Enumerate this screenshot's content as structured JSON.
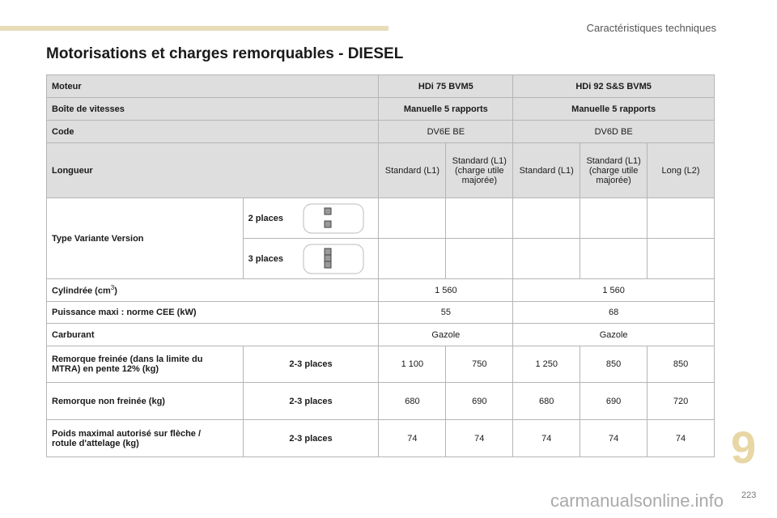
{
  "header": {
    "section": "Caractéristiques techniques",
    "title": "Motorisations et charges remorquables - DIESEL"
  },
  "table": {
    "moteur": {
      "label": "Moteur",
      "c1": "HDi 75 BVM5",
      "c2": "HDi 92 S&S BVM5"
    },
    "boite": {
      "label": "Boîte de vitesses",
      "c1": "Manuelle 5 rapports",
      "c2": "Manuelle 5 rapports"
    },
    "code": {
      "label": "Code",
      "c1": "DV6E BE",
      "c2": "DV6D BE"
    },
    "longueur": {
      "label": "Longueur",
      "cols": [
        "Standard (L1)",
        "Standard (L1) (charge utile majorée)",
        "Standard (L1)",
        "Standard (L1) (charge utile majorée)",
        "Long (L2)"
      ]
    },
    "type": {
      "label": "Type Variante Version",
      "v1": "2 places",
      "v2": "3 places"
    },
    "cylindree": {
      "label": "Cylindrée (cm",
      "sup": "3",
      "label_end": ")",
      "c1": "1 560",
      "c2": "1 560"
    },
    "puissance": {
      "label": "Puissance maxi : norme CEE (kW)",
      "c1": "55",
      "c2": "68"
    },
    "carburant": {
      "label": "Carburant",
      "c1": "Gazole",
      "c2": "Gazole"
    },
    "rows": [
      {
        "label": "Remorque freinée (dans la limite du MTRA) en pente 12% (kg)",
        "places": "2-3 places",
        "values": [
          "1 100",
          "750",
          "1 250",
          "850",
          "850"
        ]
      },
      {
        "label": "Remorque non freinée (kg)",
        "places": "2-3 places",
        "values": [
          "680",
          "690",
          "680",
          "690",
          "720"
        ]
      },
      {
        "label": "Poids maximal autorisé sur flèche / rotule d'attelage (kg)",
        "places": "2-3 places",
        "values": [
          "74",
          "74",
          "74",
          "74",
          "74"
        ]
      }
    ]
  },
  "footer": {
    "chapter": "9",
    "page": "223",
    "watermark": "carmanualsonline.info"
  }
}
